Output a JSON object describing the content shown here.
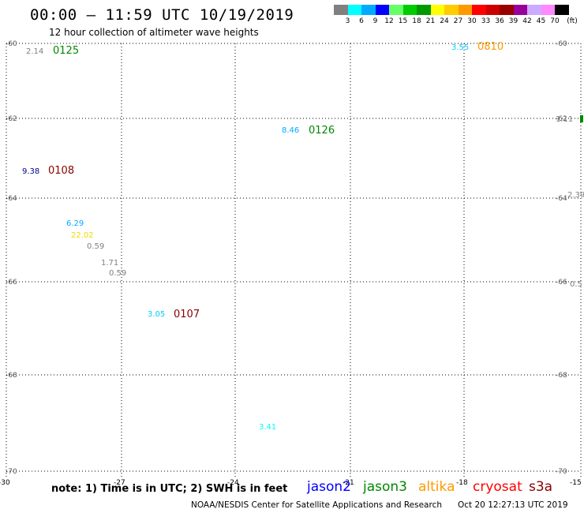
{
  "header": {
    "title": "00:00 – 11:59 UTC 10/19/2019",
    "subtitle": "12 hour collection of altimeter wave heights"
  },
  "color_scale": {
    "swatches": [
      "#808080",
      "#00ffff",
      "#00aaff",
      "#0000ff",
      "#66ff66",
      "#00cc00",
      "#009900",
      "#ffff00",
      "#ffcc00",
      "#ff9900",
      "#ff0000",
      "#cc0000",
      "#990000",
      "#990099",
      "#ccaaff",
      "#ff88ff",
      "#000000"
    ],
    "labels": [
      "3",
      "6",
      "9",
      "12",
      "15",
      "18",
      "21",
      "24",
      "27",
      "30",
      "33",
      "36",
      "39",
      "42",
      "45",
      "70",
      "(ft)"
    ]
  },
  "axes": {
    "lat_labels": [
      "-60",
      "-62",
      "-64",
      "-66",
      "-68",
      "-70"
    ],
    "lon_labels": [
      "-30",
      "-27",
      "-24",
      "-21",
      "-18",
      "-15"
    ]
  },
  "observations": [
    {
      "value": "2.14",
      "color": "#808080"
    },
    {
      "value": "3.55",
      "color": "#00ccff"
    },
    {
      "value": "1.11",
      "color": "#808080"
    },
    {
      "value": "8.46",
      "color": "#00aaff"
    },
    {
      "value": "9.38",
      "color": "#000099"
    },
    {
      "value": "2.39",
      "color": "#808080"
    },
    {
      "value": "6.29",
      "color": "#00aaff"
    },
    {
      "value": "22.02",
      "color": "#eedd00"
    },
    {
      "value": "0.59",
      "color": "#808080"
    },
    {
      "value": "1.71",
      "color": "#808080"
    },
    {
      "value": "0.59",
      "color": "#808080"
    },
    {
      "value": "0.5",
      "color": "#808080"
    },
    {
      "value": "3.05",
      "color": "#00ccff"
    },
    {
      "value": "3.41",
      "color": "#00ffff"
    }
  ],
  "pass_times": [
    {
      "time": "0125",
      "color": "#008800"
    },
    {
      "time": "0810",
      "color": "#ff9900"
    },
    {
      "time": "0126",
      "color": "#008800"
    },
    {
      "time": "0108",
      "color": "#880000"
    },
    {
      "time": "0107",
      "color": "#880000"
    }
  ],
  "note": "note: 1) Time is in UTC; 2) SWH is in feet",
  "satellites": [
    {
      "name": "jason2",
      "color": "#0000ff"
    },
    {
      "name": "jason3",
      "color": "#008800"
    },
    {
      "name": "altika",
      "color": "#ff9900"
    },
    {
      "name": "cryosat",
      "color": "#ff0000"
    },
    {
      "name": "s3a",
      "color": "#880000"
    }
  ],
  "footer": {
    "credit": "NOAA/NESDIS Center for Satellite Applications and Research",
    "generated": "Oct 20 12:27:13 UTC 2019"
  }
}
